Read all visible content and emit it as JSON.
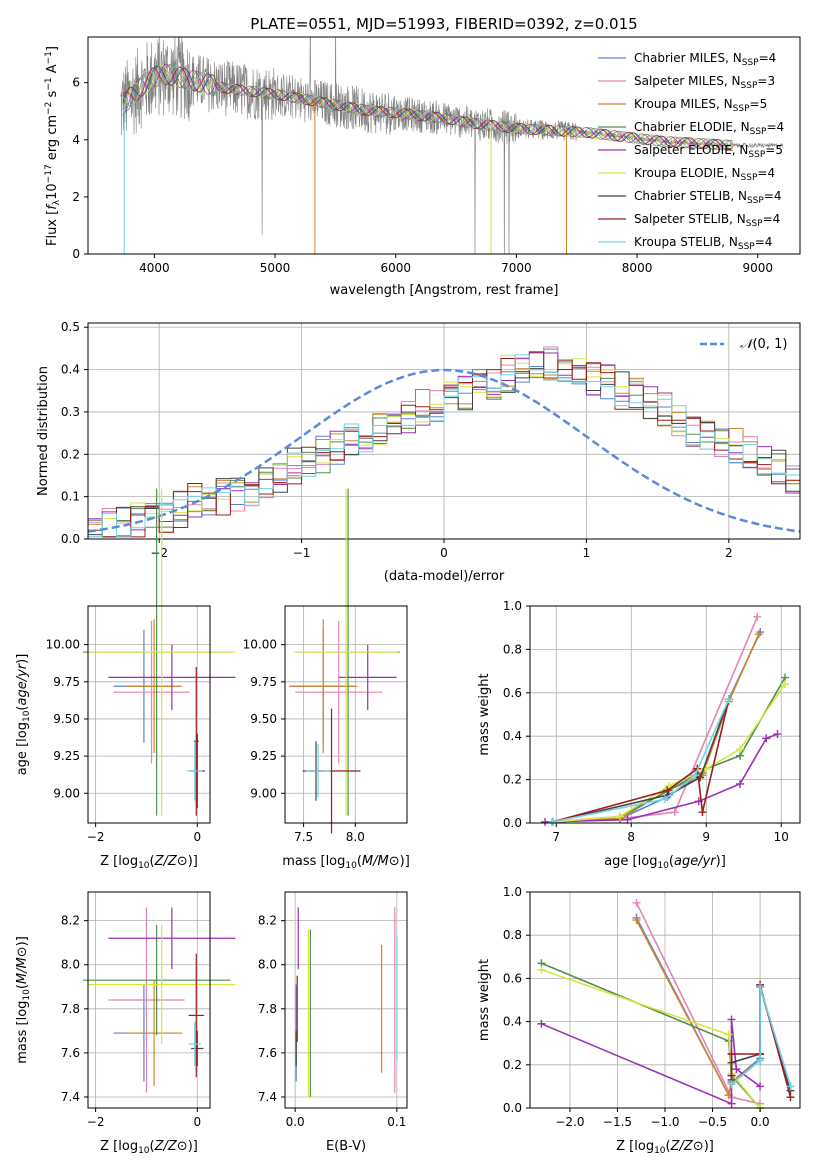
{
  "colors": {
    "chabrier_miles": "#5b82d6",
    "salpeter_miles": "#e582b6",
    "kroupa_miles": "#d2852a",
    "chabrier_elodie": "#4f8f4f",
    "salpeter_elodie": "#9b30b4",
    "kroupa_elodie": "#d4e640",
    "chabrier_stelib": "#444444",
    "salpeter_stelib": "#9b1c1c",
    "kroupa_stelib": "#72d2e0",
    "data_spectrum": "#808080",
    "gauss": "#5b8bd6",
    "grid": "#b0b0b0"
  },
  "legend_spectrum": [
    {
      "pre": "Chabrier MILES, N",
      "sub": "SSP",
      "post": "=4",
      "color_key": "chabrier_miles"
    },
    {
      "pre": "Salpeter MILES, N",
      "sub": "SSP",
      "post": "=3",
      "color_key": "salpeter_miles"
    },
    {
      "pre": "Kroupa MILES, N",
      "sub": "SSP",
      "post": "=5",
      "color_key": "kroupa_miles"
    },
    {
      "pre": "Chabrier ELODIE, N",
      "sub": "SSP",
      "post": "=4",
      "color_key": "chabrier_elodie"
    },
    {
      "pre": "Salpeter ELODIE, N",
      "sub": "SSP",
      "post": "=5",
      "color_key": "salpeter_elodie"
    },
    {
      "pre": "Kroupa ELODIE, N",
      "sub": "SSP",
      "post": "=4",
      "color_key": "kroupa_elodie"
    },
    {
      "pre": "Chabrier STELIB, N",
      "sub": "SSP",
      "post": "=4",
      "color_key": "chabrier_stelib"
    },
    {
      "pre": "Salpeter STELIB, N",
      "sub": "SSP",
      "post": "=4",
      "color_key": "salpeter_stelib"
    },
    {
      "pre": "Kroupa STELIB, N",
      "sub": "SSP",
      "post": "=4",
      "color_key": "kroupa_stelib"
    }
  ],
  "chart_data": [
    {
      "id": "spectrum",
      "type": "line",
      "title": "PLATE=0551, MJD=51993, FIBERID=0392, z=0.015",
      "xlabel": "wavelength [Angstrom, rest frame]",
      "ylabel_parts": [
        "Flux [",
        "f",
        "λ",
        "10",
        "−17",
        " erg cm",
        "−2",
        " s",
        "−1",
        " A",
        "−1",
        "]"
      ],
      "xlim": [
        3450,
        9350
      ],
      "ylim": [
        0,
        7.6
      ],
      "xticks": [
        4000,
        5000,
        6000,
        7000,
        8000,
        9000
      ],
      "yticks": [
        0,
        2,
        4,
        6
      ],
      "continuum": {
        "x": [
          3720,
          3800,
          3900,
          4000,
          4100,
          4200,
          4400,
          4600,
          4800,
          5000,
          5200,
          5400,
          5600,
          5800,
          6000,
          6200,
          6400,
          6600,
          6800,
          7000,
          7200,
          7400,
          7600,
          7800,
          8000,
          8200,
          8400,
          8600,
          8800
        ],
        "y": [
          5.1,
          5.5,
          5.9,
          6.2,
          6.3,
          6.2,
          6.0,
          5.8,
          5.7,
          5.6,
          5.45,
          5.3,
          5.15,
          5.0,
          4.95,
          4.85,
          4.75,
          4.6,
          4.5,
          4.4,
          4.35,
          4.3,
          4.25,
          4.15,
          4.05,
          3.95,
          3.9,
          3.85,
          3.8
        ]
      },
      "data_range": [
        3720,
        9210
      ]
    },
    {
      "id": "residuals",
      "type": "bar",
      "xlabel": "(data-model)/error",
      "ylabel": "Normed distribution",
      "xlim": [
        -2.5,
        2.5
      ],
      "ylim": [
        0,
        0.51
      ],
      "xticks": [
        -2,
        -1,
        0,
        1,
        2
      ],
      "yticks": [
        0.0,
        0.1,
        0.2,
        0.3,
        0.4,
        0.5
      ],
      "bin_width": 0.1,
      "legend": "N(0, 1)",
      "bins_center": [
        0.02,
        0.03,
        0.03,
        0.04,
        0.05,
        0.06,
        0.07,
        0.09,
        0.09,
        0.1,
        0.11,
        0.12,
        0.13,
        0.15,
        0.17,
        0.18,
        0.2,
        0.21,
        0.23,
        0.24,
        0.26,
        0.28,
        0.29,
        0.31,
        0.32,
        0.34,
        0.35,
        0.36,
        0.37,
        0.39,
        0.4,
        0.41,
        0.41,
        0.4,
        0.39,
        0.38,
        0.37,
        0.35,
        0.34,
        0.32,
        0.3,
        0.28,
        0.26,
        0.25,
        0.23,
        0.22,
        0.2,
        0.18,
        0.17,
        0.15
      ]
    },
    {
      "id": "age_vs_Z",
      "type": "scatter",
      "xlabel": "Z [log10(Z/Z⊙)]",
      "ylabel": "age [log10(age/yr)]",
      "xlim": [
        -2.15,
        0.25
      ],
      "ylim": [
        8.8,
        10.26
      ],
      "xticks": [
        -2,
        0
      ],
      "yticks": [
        9.0,
        9.25,
        9.5,
        9.75,
        10.0
      ],
      "points": [
        {
          "s": "chabrier_miles",
          "x": -1.05,
          "y": 9.72,
          "xe": 0.6,
          "ye": 0.38
        },
        {
          "s": "salpeter_miles",
          "x": -0.9,
          "y": 9.68,
          "xe": 0.75,
          "ye": 0.48
        },
        {
          "s": "kroupa_miles",
          "x": -0.85,
          "y": 9.72,
          "xe": 0.55,
          "ye": 0.45
        },
        {
          "s": "chabrier_elodie",
          "x": -0.8,
          "y": 9.95,
          "xe": 1.45,
          "ye": 1.1
        },
        {
          "s": "salpeter_elodie",
          "x": -0.5,
          "y": 9.78,
          "xe": 1.25,
          "ye": 0.22
        },
        {
          "s": "kroupa_elodie",
          "x": -0.7,
          "y": 9.95,
          "xe": 1.45,
          "ye": 1.1
        },
        {
          "s": "chabrier_stelib",
          "x": 0.0,
          "y": 9.15,
          "xe": 0.15,
          "ye": 0.25
        },
        {
          "s": "salpeter_stelib",
          "x": -0.02,
          "y": 9.35,
          "xe": 0.05,
          "ye": 0.5
        },
        {
          "s": "kroupa_stelib",
          "x": -0.05,
          "y": 9.15,
          "xe": 0.15,
          "ye": 0.2
        }
      ]
    },
    {
      "id": "age_vs_mass",
      "type": "scatter",
      "xlabel": "mass [log10(M/M⊙)]",
      "ylabel": "",
      "xlim": [
        7.32,
        8.5
      ],
      "ylim": [
        8.8,
        10.26
      ],
      "xticks": [
        7.5,
        8.0
      ],
      "yticks": [
        9.0,
        9.25,
        9.5,
        9.75,
        10.0
      ],
      "points": [
        {
          "s": "chabrier_miles",
          "x": 7.69,
          "y": 9.72,
          "xe": 0.3,
          "ye": 0.38
        },
        {
          "s": "salpeter_miles",
          "x": 7.84,
          "y": 9.68,
          "xe": 0.42,
          "ye": 0.48
        },
        {
          "s": "kroupa_miles",
          "x": 7.69,
          "y": 9.72,
          "xe": 0.33,
          "ye": 0.45
        },
        {
          "s": "chabrier_elodie",
          "x": 7.93,
          "y": 9.95,
          "xe": 0.5,
          "ye": 1.1
        },
        {
          "s": "salpeter_elodie",
          "x": 8.12,
          "y": 9.78,
          "xe": 0.28,
          "ye": 0.22
        },
        {
          "s": "kroupa_elodie",
          "x": 7.91,
          "y": 9.95,
          "xe": 0.5,
          "ye": 1.1
        },
        {
          "s": "chabrier_stelib",
          "x": 7.62,
          "y": 9.15,
          "xe": 0.06,
          "ye": 0.2
        },
        {
          "s": "salpeter_stelib",
          "x": 7.77,
          "y": 9.15,
          "xe": 0.28,
          "ye": 0.42
        },
        {
          "s": "kroupa_stelib",
          "x": 7.64,
          "y": 9.15,
          "xe": 0.12,
          "ye": 0.18
        }
      ]
    },
    {
      "id": "weight_vs_age",
      "type": "line",
      "xlabel": "age [log10(age/yr)]",
      "ylabel": "mass weight",
      "xlim": [
        6.65,
        10.25
      ],
      "ylim": [
        0,
        1.0
      ],
      "xticks": [
        7,
        8,
        9,
        10
      ],
      "yticks": [
        0.0,
        0.2,
        0.4,
        0.6,
        0.8,
        1.0
      ],
      "series": [
        {
          "s": "chabrier_miles",
          "x": [
            6.95,
            7.85,
            8.48,
            8.95,
            9.3,
            9.72
          ],
          "y": [
            0.005,
            0.02,
            0.12,
            0.23,
            0.57,
            0.88
          ]
        },
        {
          "s": "salpeter_miles",
          "x": [
            6.95,
            7.85,
            8.58,
            9.68
          ],
          "y": [
            0.005,
            0.02,
            0.05,
            0.95
          ]
        },
        {
          "s": "kroupa_miles",
          "x": [
            6.95,
            7.85,
            8.48,
            8.95,
            9.3,
            9.7
          ],
          "y": [
            0.005,
            0.02,
            0.15,
            0.22,
            0.56,
            0.87
          ]
        },
        {
          "s": "chabrier_elodie",
          "x": [
            6.95,
            7.85,
            8.5,
            9.0,
            9.45,
            10.05
          ],
          "y": [
            0.005,
            0.03,
            0.15,
            0.25,
            0.31,
            0.67
          ]
        },
        {
          "s": "salpeter_elodie",
          "x": [
            6.85,
            7.95,
            8.9,
            9.45,
            9.8,
            9.95
          ],
          "y": [
            0.005,
            0.015,
            0.1,
            0.18,
            0.39,
            0.41
          ]
        },
        {
          "s": "kroupa_elodie",
          "x": [
            6.95,
            7.85,
            8.5,
            9.0,
            9.45,
            10.05
          ],
          "y": [
            0.005,
            0.03,
            0.17,
            0.25,
            0.34,
            0.64
          ]
        },
        {
          "s": "chabrier_stelib",
          "x": [
            6.95,
            8.5,
            8.92,
            9.3
          ],
          "y": [
            0.005,
            0.13,
            0.21,
            0.57
          ]
        },
        {
          "s": "salpeter_stelib",
          "x": [
            6.95,
            8.48,
            8.88,
            8.95,
            9.3
          ],
          "y": [
            0.005,
            0.15,
            0.25,
            0.05,
            0.57
          ]
        },
        {
          "s": "kroupa_stelib",
          "x": [
            6.95,
            8.45,
            8.85,
            9.3
          ],
          "y": [
            0.005,
            0.11,
            0.22,
            0.57
          ]
        }
      ]
    },
    {
      "id": "mass_vs_Z",
      "type": "scatter",
      "xlabel": "Z [log10(Z/Z⊙)]",
      "ylabel": "mass [log10(M/M⊙)]",
      "xlim": [
        -2.15,
        0.25
      ],
      "ylim": [
        7.35,
        8.33
      ],
      "xticks": [
        -2,
        0
      ],
      "yticks": [
        7.4,
        7.6,
        7.8,
        8.0,
        8.2
      ],
      "points": [
        {
          "s": "chabrier_miles",
          "x": -1.05,
          "y": 7.69,
          "xe": 0.6,
          "ye": 0.22
        },
        {
          "s": "salpeter_miles",
          "x": -1.0,
          "y": 7.84,
          "xe": 0.75,
          "ye": 0.42
        },
        {
          "s": "kroupa_miles",
          "x": -0.85,
          "y": 7.69,
          "xe": 0.55,
          "ye": 0.24
        },
        {
          "s": "chabrier_elodie",
          "x": -0.8,
          "y": 7.93,
          "xe": 1.45,
          "ye": 0.25
        },
        {
          "s": "salpeter_elodie",
          "x": -0.5,
          "y": 8.12,
          "xe": 1.25,
          "ye": 0.14
        },
        {
          "s": "kroupa_elodie",
          "x": -0.7,
          "y": 7.91,
          "xe": 1.45,
          "ye": 0.27
        },
        {
          "s": "chabrier_stelib",
          "x": 0.0,
          "y": 7.62,
          "xe": 0.12,
          "ye": 0.08
        },
        {
          "s": "salpeter_stelib",
          "x": -0.02,
          "y": 7.77,
          "xe": 0.15,
          "ye": 0.28
        },
        {
          "s": "kroupa_stelib",
          "x": -0.05,
          "y": 7.64,
          "xe": 0.12,
          "ye": 0.1
        }
      ]
    },
    {
      "id": "mass_vs_ebv",
      "type": "scatter",
      "xlabel": "E(B-V)",
      "ylabel": "",
      "xlim": [
        -0.01,
        0.11
      ],
      "ylim": [
        7.35,
        8.33
      ],
      "xticks": [
        0.0,
        0.1
      ],
      "yticks": [
        7.4,
        7.6,
        7.8,
        8.0,
        8.2
      ],
      "points": [
        {
          "s": "chabrier_miles",
          "x": 0.001,
          "y": 7.69,
          "xe": 0,
          "ye": 0.22
        },
        {
          "s": "salpeter_miles",
          "x": 0.098,
          "y": 7.84,
          "xe": 0,
          "ye": 0.42
        },
        {
          "s": "kroupa_miles",
          "x": 0.085,
          "y": 7.8,
          "xe": 0,
          "ye": 0.29
        },
        {
          "s": "chabrier_elodie",
          "x": 0.015,
          "y": 7.78,
          "xe": 0,
          "ye": 0.38
        },
        {
          "s": "salpeter_elodie",
          "x": 0.003,
          "y": 8.12,
          "xe": 0,
          "ye": 0.14
        },
        {
          "s": "kroupa_elodie",
          "x": 0.013,
          "y": 7.78,
          "xe": 0,
          "ye": 0.38
        },
        {
          "s": "chabrier_stelib",
          "x": 0.001,
          "y": 7.62,
          "xe": 0,
          "ye": 0.08
        },
        {
          "s": "salpeter_stelib",
          "x": 0.002,
          "y": 7.8,
          "xe": 0,
          "ye": 0.15
        },
        {
          "s": "kroupa_stelib",
          "x": 0.1,
          "y": 7.85,
          "xe": 0,
          "ye": 0.28
        }
      ]
    },
    {
      "id": "weight_vs_Z",
      "type": "line",
      "xlabel": "Z [log10(Z/Z⊙)]",
      "ylabel": "mass weight",
      "xlim": [
        -2.42,
        0.42
      ],
      "ylim": [
        0,
        1.0
      ],
      "xticks": [
        -2.0,
        -1.5,
        -1.0,
        -0.5,
        0.0
      ],
      "yticks": [
        0.0,
        0.2,
        0.4,
        0.6,
        0.8,
        1.0
      ],
      "series": [
        {
          "s": "chabrier_miles",
          "x": [
            -1.3,
            -0.33,
            -0.3,
            0.0,
            0.0,
            0.32
          ],
          "y": [
            0.88,
            0.06,
            0.12,
            0.23,
            0.56,
            0.1
          ]
        },
        {
          "s": "salpeter_miles",
          "x": [
            -1.3,
            -0.3,
            0.0
          ],
          "y": [
            0.95,
            0.05,
            0.02
          ]
        },
        {
          "s": "kroupa_miles",
          "x": [
            -1.3,
            -0.33,
            -0.3,
            0.0,
            0.0
          ],
          "y": [
            0.87,
            0.06,
            0.12,
            0.22,
            0.56
          ]
        },
        {
          "s": "chabrier_elodie",
          "x": [
            -2.3,
            -0.33,
            -0.3,
            0.0
          ],
          "y": [
            0.67,
            0.31,
            0.15,
            0.0
          ]
        },
        {
          "s": "salpeter_elodie",
          "x": [
            -2.3,
            -0.3,
            -0.3,
            -0.25,
            0.0
          ],
          "y": [
            0.39,
            0.02,
            0.41,
            0.18,
            0.1
          ]
        },
        {
          "s": "kroupa_elodie",
          "x": [
            -2.3,
            -0.33,
            -0.3,
            0.0
          ],
          "y": [
            0.64,
            0.34,
            0.16,
            0.0
          ]
        },
        {
          "s": "chabrier_stelib",
          "x": [
            -0.3,
            -0.3,
            0.0,
            0.0,
            0.32
          ],
          "y": [
            0.13,
            0.21,
            0.25,
            0.56,
            0.08
          ]
        },
        {
          "s": "salpeter_stelib",
          "x": [
            -0.3,
            -0.3,
            0.0,
            0.0,
            0.32
          ],
          "y": [
            0.15,
            0.25,
            0.25,
            0.57,
            0.05
          ]
        },
        {
          "s": "kroupa_stelib",
          "x": [
            -0.3,
            0.0,
            0.0,
            0.32
          ],
          "y": [
            0.11,
            0.22,
            0.56,
            0.1
          ]
        }
      ]
    }
  ]
}
